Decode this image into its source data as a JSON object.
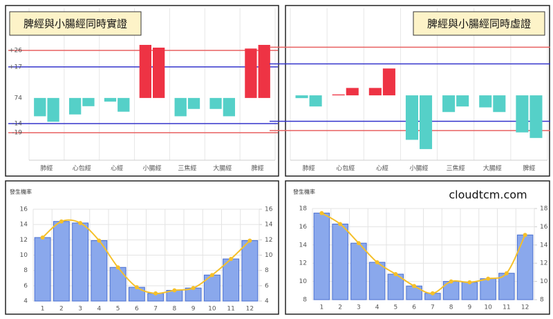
{
  "chart_data": [
    {
      "type": "diverging_bar",
      "title": "脾經與小腸經同時實證",
      "categories": [
        "肺經",
        "心包經",
        "心經",
        "小腸經",
        "三焦經",
        "大腸經",
        "脾經"
      ],
      "series": [
        {
          "values": [
            -10,
            -9,
            -2,
            29,
            -10,
            -6,
            27
          ]
        },
        {
          "values": [
            -13,
            -4.5,
            -7.5,
            27.5,
            -6,
            -10,
            29
          ]
        }
      ],
      "positive_color": "#ee3344",
      "negative_color": "#55d0c8",
      "ylim": [
        -34,
        49
      ],
      "yticks": [
        {
          "value": 26,
          "label": "+26"
        },
        {
          "value": 17,
          "label": "+17"
        },
        {
          "value": 0,
          "label": "74"
        },
        {
          "value": -14,
          "label": "-14"
        },
        {
          "value": -19,
          "label": "-19"
        }
      ],
      "ytick_colors": [
        "#e86060",
        "#3333cc",
        null,
        "#3333cc",
        "#e86060"
      ],
      "show_tick_labels": true
    },
    {
      "type": "diverging_bar",
      "title": "脾經與小腸經同時虛證",
      "categories": [
        "肺經",
        "心包經",
        "心經",
        "小腸經",
        "三焦經",
        "大腸經",
        "脾經"
      ],
      "series": [
        {
          "values": [
            -1.5,
            0.5,
            4,
            -24,
            -9,
            -6.5,
            -20
          ]
        },
        {
          "values": [
            -6,
            4,
            14.5,
            -29,
            -6,
            -9,
            -23
          ]
        }
      ],
      "positive_color": "#ee3344",
      "negative_color": "#55d0c8",
      "ylim": [
        -35,
        47
      ],
      "yticks": [
        26,
        17,
        -14,
        -19
      ],
      "ytick_colors": [
        "#e86060",
        "#3333cc",
        "#3333cc",
        "#e86060"
      ],
      "show_tick_labels": false
    },
    {
      "type": "bar_line",
      "title": "發生機率",
      "categories": [
        "1",
        "2",
        "3",
        "4",
        "5",
        "6",
        "7",
        "8",
        "9",
        "10",
        "11",
        "12"
      ],
      "values": [
        12.3,
        14.4,
        14.2,
        11.9,
        8.4,
        5.8,
        5.0,
        5.4,
        5.7,
        7.4,
        9.5,
        11.9
      ],
      "bar_color": "#8aa8ec",
      "bar_border": "#4a6fd0",
      "line_color": "#f5c02a",
      "ylim": [
        4,
        16
      ],
      "yticks": [
        4,
        6,
        8,
        10,
        12,
        14,
        16
      ],
      "y2lim": [
        4,
        16
      ],
      "y2ticks": [
        4,
        6,
        8,
        10,
        12,
        14,
        16
      ],
      "grid": true
    },
    {
      "type": "bar_line",
      "title": "發生機率",
      "annotation": "cloudtcm.com",
      "categories": [
        "1",
        "2",
        "3",
        "4",
        "5",
        "6",
        "7",
        "8",
        "9",
        "10",
        "11",
        "12"
      ],
      "values": [
        17.5,
        16.3,
        14.2,
        12.1,
        10.8,
        9.5,
        8.7,
        10.0,
        9.9,
        10.3,
        10.9,
        15.1
      ],
      "bar_color": "#8aa8ec",
      "bar_border": "#4a6fd0",
      "line_color": "#f5c02a",
      "ylim": [
        8,
        18
      ],
      "yticks": [
        8,
        10,
        12,
        14,
        16,
        18
      ],
      "y2lim": [
        8,
        18
      ],
      "y2ticks": [
        8,
        10,
        12,
        14,
        16,
        18
      ],
      "grid": true
    }
  ]
}
